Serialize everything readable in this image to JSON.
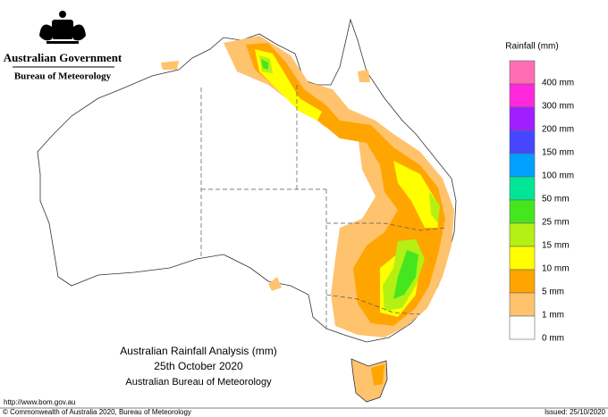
{
  "header": {
    "agency": "Australian Government",
    "bureau": "Bureau of Meteorology"
  },
  "legend": {
    "title": "Rainfall (mm)",
    "items": [
      {
        "label": "400 mm",
        "color": "#ff6eb4"
      },
      {
        "label": "300 mm",
        "color": "#ff28dc"
      },
      {
        "label": "200 mm",
        "color": "#a01eff"
      },
      {
        "label": "150 mm",
        "color": "#4646ff"
      },
      {
        "label": "100 mm",
        "color": "#00a0ff"
      },
      {
        "label": "50 mm",
        "color": "#00e696"
      },
      {
        "label": "25 mm",
        "color": "#46e61e"
      },
      {
        "label": "15 mm",
        "color": "#b4f014"
      },
      {
        "label": "10 mm",
        "color": "#ffff00"
      },
      {
        "label": "5 mm",
        "color": "#ffa500"
      },
      {
        "label": "1 mm",
        "color": "#ffc36e"
      },
      {
        "label": "0 mm",
        "color": "#ffffff"
      }
    ]
  },
  "title": {
    "lines": [
      "Australian Rainfall Analysis (mm)",
      "25th October 2020",
      "Australian Bureau of Meteorology"
    ]
  },
  "footer": {
    "url": "http://www.bom.gov.au",
    "copyright": "© Commonwealth of Australia 2020, Bureau of Meteorology",
    "issued": "Issued: 25/10/2020"
  }
}
